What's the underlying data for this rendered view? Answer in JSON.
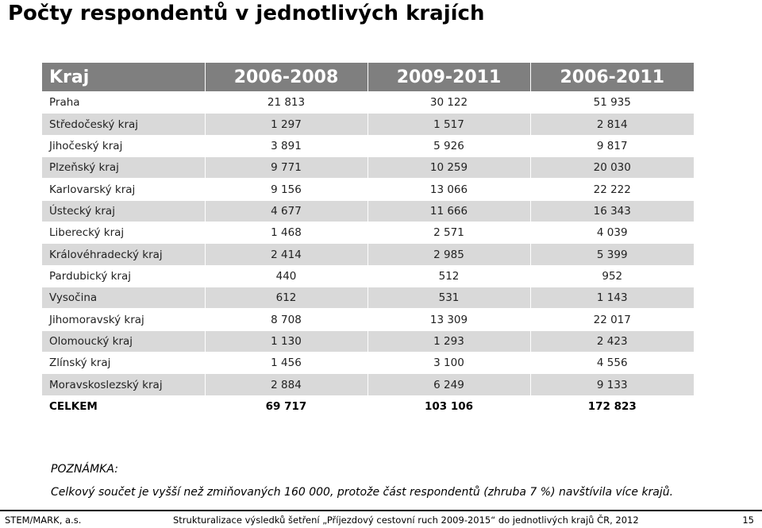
{
  "page": {
    "title": "Počty respondentů v jednotlivých krajích"
  },
  "table": {
    "headers": [
      "Kraj",
      "2006-2008",
      "2009-2011",
      "2006-2011"
    ],
    "rows": [
      [
        "Praha",
        "21 813",
        "30 122",
        "51 935"
      ],
      [
        "Středočeský kraj",
        "1 297",
        "1 517",
        "2 814"
      ],
      [
        "Jihočeský kraj",
        "3 891",
        "5 926",
        "9 817"
      ],
      [
        "Plzeňský kraj",
        "9 771",
        "10 259",
        "20 030"
      ],
      [
        "Karlovarský kraj",
        "9 156",
        "13 066",
        "22 222"
      ],
      [
        "Ústecký kraj",
        "4 677",
        "11 666",
        "16 343"
      ],
      [
        "Liberecký kraj",
        "1 468",
        "2 571",
        "4 039"
      ],
      [
        "Královéhradecký kraj",
        "2 414",
        "2 985",
        "5 399"
      ],
      [
        "Pardubický kraj",
        "440",
        "512",
        "952"
      ],
      [
        "Vysočina",
        "612",
        "531",
        "1 143"
      ],
      [
        "Jihomoravský kraj",
        "8 708",
        "13 309",
        "22 017"
      ],
      [
        "Olomoucký kraj",
        "1 130",
        "1 293",
        "2 423"
      ],
      [
        "Zlínský kraj",
        "1 456",
        "3 100",
        "4 556"
      ],
      [
        "Moravskoslezský kraj",
        "2 884",
        "6 249",
        "9 133"
      ]
    ],
    "total": [
      "CELKEM",
      "69 717",
      "103 106",
      "172 823"
    ]
  },
  "note": {
    "label": "POZNÁMKA:",
    "text": "Celkový součet je vyšší než zmiňovaných 160 000, protože část respondentů (zhruba 7 %) navštívila více krajů."
  },
  "footer": {
    "left": "STEM/MARK, a.s.",
    "center": "Strukturalizace výsledků šetření „Příjezdový cestovní ruch 2009-2015“ do jednotlivých krajů ČR, 2012",
    "page_number": "15"
  },
  "colors": {
    "header_bg": "#7f7f7f",
    "stripe_bg": "#d9d9d9"
  }
}
